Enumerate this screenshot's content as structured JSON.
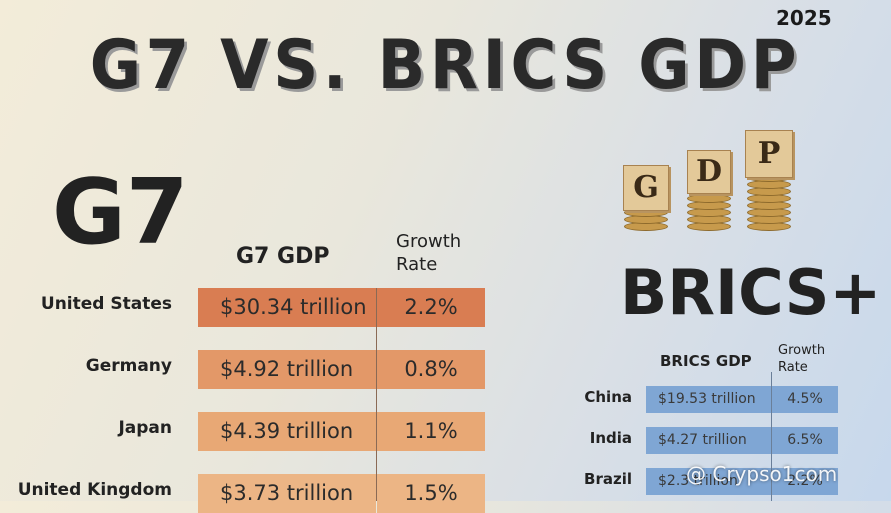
{
  "header": {
    "year": "2025",
    "title": "G7 VS. BRICS GDP"
  },
  "g7": {
    "heading": "G7",
    "col_gdp": "G7 GDP",
    "col_growth_1": "Growth",
    "col_growth_2": "Rate",
    "rows": [
      {
        "country": "United States",
        "gdp": "$30.34 trillion",
        "growth": "2.2%"
      },
      {
        "country": "Germany",
        "gdp": "$4.92 trillion",
        "growth": "0.8%"
      },
      {
        "country": "Japan",
        "gdp": "$4.39 trillion",
        "growth": "1.1%"
      },
      {
        "country": "United Kingdom",
        "gdp": "$3.73 trillion",
        "growth": "1.5%"
      }
    ],
    "colors": [
      "#d97d52",
      "#e39868",
      "#e8a875",
      "#ecb585"
    ]
  },
  "brics": {
    "heading": "BRICS+",
    "col_gdp": "BRICS GDP",
    "col_growth_1": "Growth",
    "col_growth_2": "Rate",
    "rows": [
      {
        "country": "China",
        "gdp": "$19.53 trillion",
        "growth": "4.5%"
      },
      {
        "country": "India",
        "gdp": "$4.27 trillion",
        "growth": "6.5%"
      },
      {
        "country": "Brazil",
        "gdp": "$2.3 trillion",
        "growth": "2.2%"
      }
    ],
    "color": "#7fa6d4"
  },
  "gdp_blocks": [
    "G",
    "D",
    "P"
  ],
  "watermark": "@ Crypso1com",
  "chart_data": [
    {
      "type": "table",
      "title": "G7",
      "columns": [
        "G7 GDP",
        "Growth Rate"
      ],
      "categories": [
        "United States",
        "Germany",
        "Japan",
        "United Kingdom"
      ],
      "series": [
        {
          "name": "G7 GDP",
          "values": [
            30.34,
            4.92,
            4.39,
            3.73
          ]
        },
        {
          "name": "Growth Rate",
          "values": [
            2.2,
            0.8,
            1.1,
            1.5
          ]
        }
      ]
    },
    {
      "type": "table",
      "title": "BRICS+",
      "columns": [
        "BRICS GDP",
        "Growth Rate"
      ],
      "categories": [
        "China",
        "India",
        "Brazil"
      ],
      "series": [
        {
          "name": "BRICS GDP",
          "values": [
            19.53,
            4.27,
            2.3
          ]
        },
        {
          "name": "Growth Rate",
          "values": [
            4.5,
            6.5,
            2.2
          ]
        }
      ]
    }
  ]
}
